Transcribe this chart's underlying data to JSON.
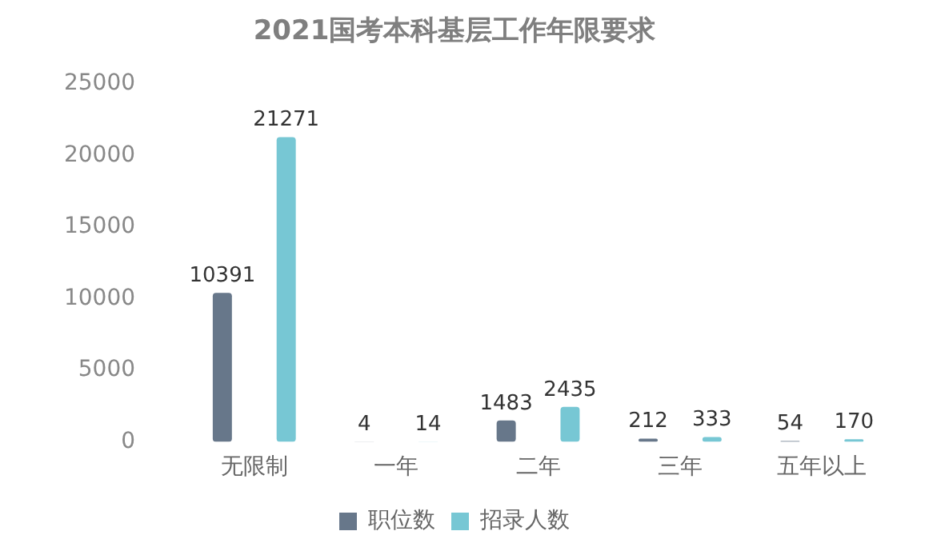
{
  "chart_data": {
    "type": "bar",
    "title": "2021国考本科基层工作年限要求",
    "categories": [
      "无限制",
      "一年",
      "二年",
      "三年",
      "五年以上"
    ],
    "series": [
      {
        "name": "职位数",
        "color": "#67778a",
        "values": [
          10391,
          4,
          1483,
          212,
          54
        ]
      },
      {
        "name": "招录人数",
        "color": "#77c7d4",
        "values": [
          21271,
          14,
          2435,
          333,
          170
        ]
      }
    ],
    "ylim": [
      0,
      25000
    ],
    "yticks": [
      0,
      5000,
      10000,
      15000,
      20000,
      25000
    ],
    "grid": false,
    "legend": "bottom",
    "data_labels": true
  }
}
